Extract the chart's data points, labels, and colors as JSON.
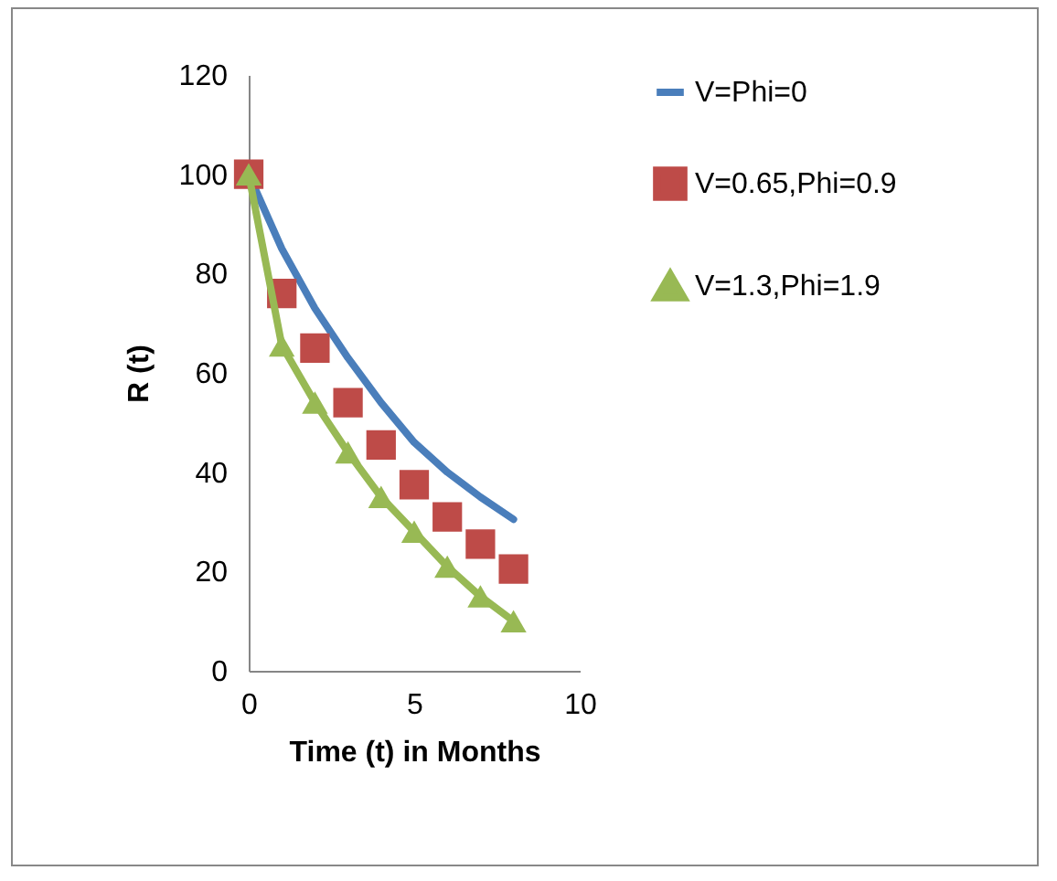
{
  "chart_data": {
    "type": "line",
    "xlabel": "Time (t) in Months",
    "ylabel": "R (t)",
    "x": [
      0,
      1,
      2,
      3,
      4,
      5,
      6,
      7,
      8
    ],
    "xlim": [
      0,
      10
    ],
    "xticks": [
      0,
      5,
      10
    ],
    "ylim": [
      0,
      120
    ],
    "yticks": [
      0,
      20,
      40,
      60,
      80,
      100,
      120
    ],
    "grid": false,
    "legend": "right",
    "series": [
      {
        "name": "V=Phi=0",
        "marker": "none",
        "color": "#4a7ebb",
        "values": [
          100,
          85,
          73,
          63,
          54,
          46,
          40,
          35,
          30.5
        ]
      },
      {
        "name": "V=0.65,Phi=0.9",
        "type": "scatter",
        "marker": "square",
        "color": "#be4b48",
        "values": [
          100,
          76,
          65,
          54,
          45.5,
          37.5,
          31,
          25.5,
          20.5
        ]
      },
      {
        "name": "V=1.3,Phi=1.9",
        "marker": "triangle",
        "color": "#98b954",
        "values": [
          100,
          65.5,
          54,
          44,
          35,
          28,
          21,
          15,
          10
        ]
      }
    ]
  }
}
